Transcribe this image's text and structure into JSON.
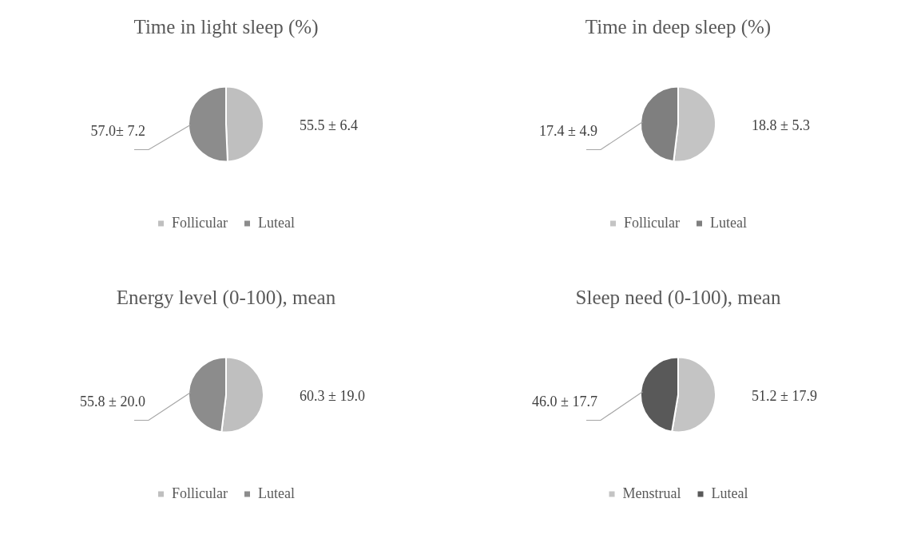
{
  "chart_data": [
    {
      "type": "pie",
      "title": "Time in light sleep (%)",
      "categories": [
        "Follicular",
        "Luteal"
      ],
      "values": [
        55.5,
        57.0
      ],
      "value_labels": [
        "55.5 ± 6.4",
        "57.0± 7.2"
      ],
      "colors": [
        "#bfbfbf",
        "#8c8c8c"
      ],
      "legend": "bottom"
    },
    {
      "type": "pie",
      "title": "Time in deep sleep (%)",
      "categories": [
        "Follicular",
        "Luteal"
      ],
      "values": [
        18.8,
        17.4
      ],
      "value_labels": [
        "18.8 ± 5.3",
        "17.4 ± 4.9"
      ],
      "colors": [
        "#c4c4c4",
        "#7f7f7f"
      ],
      "legend": "bottom"
    },
    {
      "type": "pie",
      "title": "Energy level (0-100), mean",
      "categories": [
        "Follicular",
        "Luteal"
      ],
      "values": [
        60.3,
        55.8
      ],
      "value_labels": [
        "60.3 ± 19.0",
        "55.8 ± 20.0"
      ],
      "colors": [
        "#bfbfbf",
        "#8c8c8c"
      ],
      "legend": "bottom"
    },
    {
      "type": "pie",
      "title": "Sleep need (0-100), mean",
      "categories": [
        "Menstrual",
        "Luteal"
      ],
      "values": [
        51.2,
        46.0
      ],
      "value_labels": [
        "51.2 ± 17.9",
        "46.0 ± 17.7"
      ],
      "colors": [
        "#c4c4c4",
        "#595959"
      ],
      "legend": "bottom"
    }
  ]
}
